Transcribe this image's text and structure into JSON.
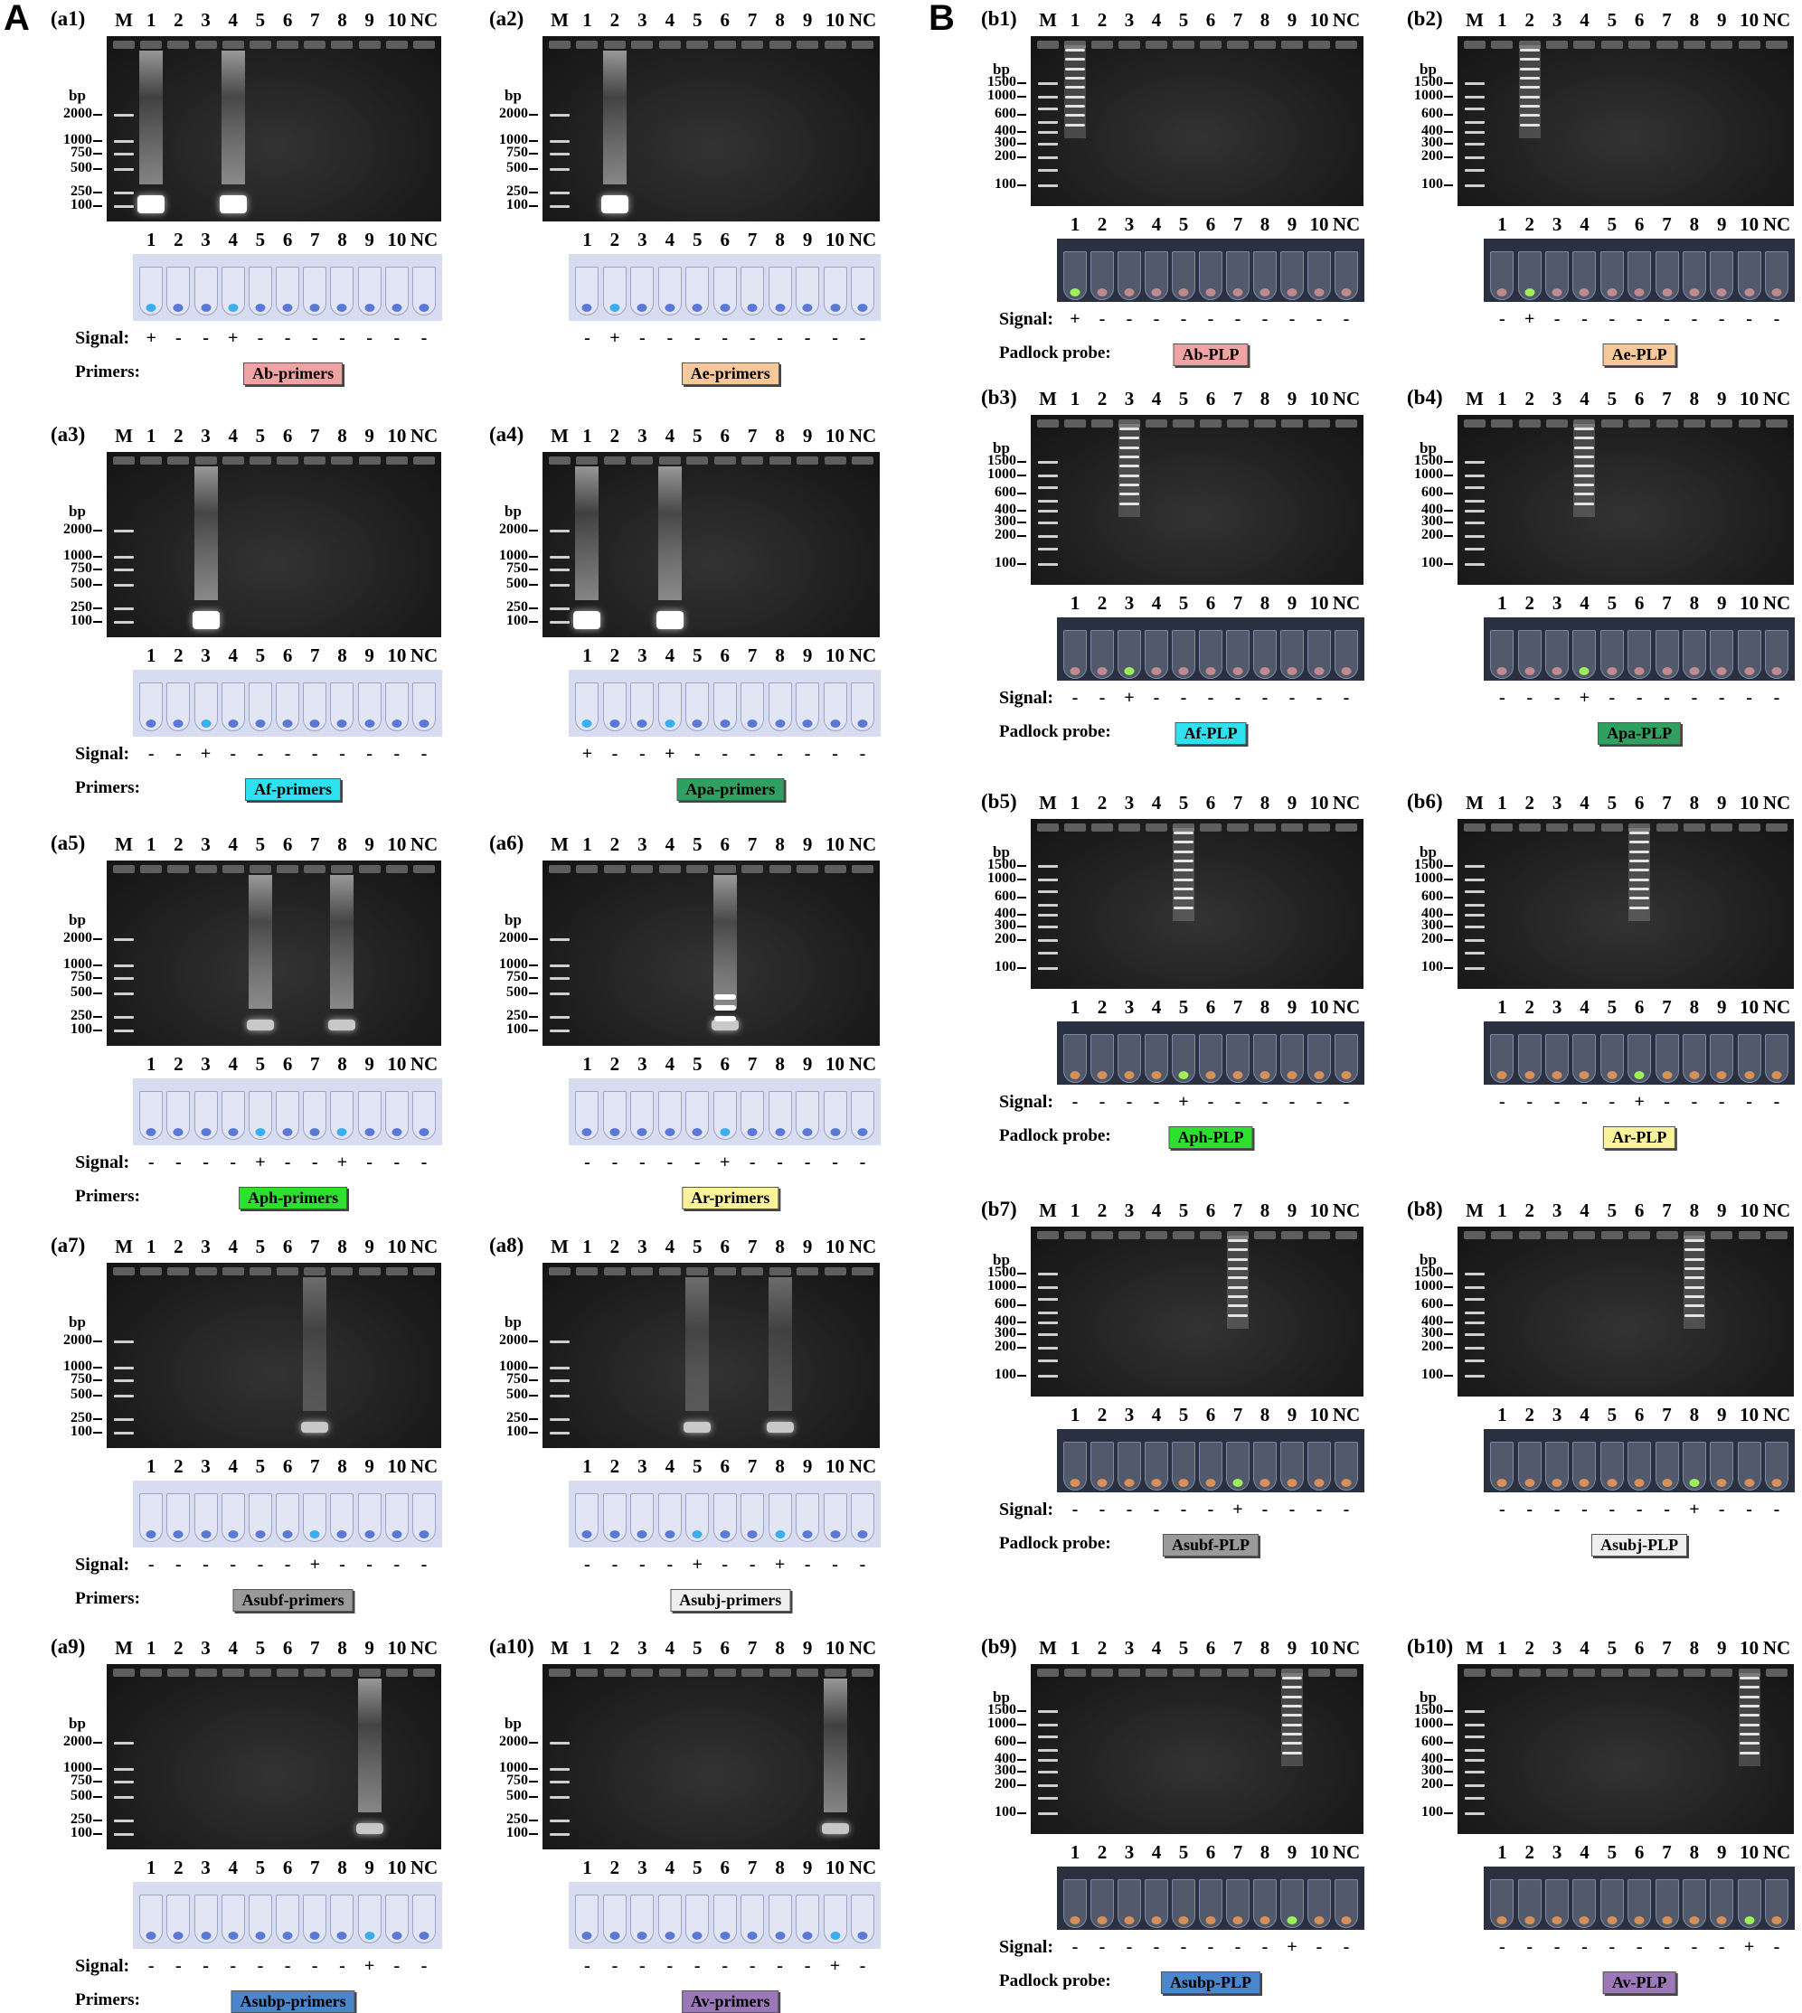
{
  "sections": [
    "A",
    "B"
  ],
  "ui": {
    "signal_label": "Signal:",
    "primers_label": "Primers:",
    "probe_label": "Padlock probe:",
    "bp_label": "bp"
  },
  "a_lanes": [
    "M",
    "1",
    "2",
    "3",
    "4",
    "5",
    "6",
    "7",
    "8",
    "9",
    "10",
    "NC"
  ],
  "tube_lanes": [
    "1",
    "2",
    "3",
    "4",
    "5",
    "6",
    "7",
    "8",
    "9",
    "10",
    "NC"
  ],
  "a_markers": [
    "2000",
    "1000",
    "750",
    "500",
    "250",
    "100"
  ],
  "b_markers": [
    "1500",
    "1000",
    "600",
    "400",
    "300",
    "200",
    "100"
  ],
  "panels_a": [
    {
      "label": "(a1)",
      "name": "Ab-primers",
      "color": "#f0a3a3",
      "signal": [
        "+",
        "-",
        "-",
        "+",
        "-",
        "-",
        "-",
        "-",
        "-",
        "-",
        "-"
      ]
    },
    {
      "label": "(a2)",
      "name": "Ae-primers",
      "color": "#f7c99a",
      "signal": [
        "-",
        "+",
        "-",
        "-",
        "-",
        "-",
        "-",
        "-",
        "-",
        "-",
        "-"
      ]
    },
    {
      "label": "(a3)",
      "name": "Af-primers",
      "color": "#2fe0ef",
      "signal": [
        "-",
        "-",
        "+",
        "-",
        "-",
        "-",
        "-",
        "-",
        "-",
        "-",
        "-"
      ]
    },
    {
      "label": "(a4)",
      "name": "Apa-primers",
      "color": "#2fa060",
      "signal": [
        "+",
        "-",
        "-",
        "+",
        "-",
        "-",
        "-",
        "-",
        "-",
        "-",
        "-"
      ]
    },
    {
      "label": "(a5)",
      "name": "Aph-primers",
      "color": "#2ee02e",
      "signal": [
        "-",
        "-",
        "-",
        "-",
        "+",
        "-",
        "-",
        "+",
        "-",
        "-",
        "-"
      ]
    },
    {
      "label": "(a6)",
      "name": "Ar-primers",
      "color": "#fbf29c",
      "signal": [
        "-",
        "-",
        "-",
        "-",
        "-",
        "+",
        "-",
        "-",
        "-",
        "-",
        "-"
      ]
    },
    {
      "label": "(a7)",
      "name": "Asubf-primers",
      "color": "#9a9a9a",
      "signal": [
        "-",
        "-",
        "-",
        "-",
        "-",
        "-",
        "+",
        "-",
        "-",
        "-",
        "-"
      ]
    },
    {
      "label": "(a8)",
      "name": "Asubj-primers",
      "color": "#efefef",
      "signal": [
        "-",
        "-",
        "-",
        "-",
        "+",
        "-",
        "-",
        "+",
        "-",
        "-",
        "-"
      ]
    },
    {
      "label": "(a9)",
      "name": "Asubp-primers",
      "color": "#4a86cc",
      "signal": [
        "-",
        "-",
        "-",
        "-",
        "-",
        "-",
        "-",
        "-",
        "+",
        "-",
        "-"
      ]
    },
    {
      "label": "(a10)",
      "name": "Av-primers",
      "color": "#9c78b8",
      "signal": [
        "-",
        "-",
        "-",
        "-",
        "-",
        "-",
        "-",
        "-",
        "-",
        "+",
        "-"
      ]
    }
  ],
  "panels_b": [
    {
      "label": "(b1)",
      "name": "Ab-PLP",
      "color": "#f0a3a3",
      "signal": [
        "+",
        "-",
        "-",
        "-",
        "-",
        "-",
        "-",
        "-",
        "-",
        "-",
        "-"
      ]
    },
    {
      "label": "(b2)",
      "name": "Ae-PLP",
      "color": "#f7c99a",
      "signal": [
        "-",
        "+",
        "-",
        "-",
        "-",
        "-",
        "-",
        "-",
        "-",
        "-",
        "-"
      ]
    },
    {
      "label": "(b3)",
      "name": "Af-PLP",
      "color": "#2fe0ef",
      "signal": [
        "-",
        "-",
        "+",
        "-",
        "-",
        "-",
        "-",
        "-",
        "-",
        "-",
        "-"
      ]
    },
    {
      "label": "(b4)",
      "name": "Apa-PLP",
      "color": "#2fa060",
      "signal": [
        "-",
        "-",
        "-",
        "+",
        "-",
        "-",
        "-",
        "-",
        "-",
        "-",
        "-"
      ]
    },
    {
      "label": "(b5)",
      "name": "Aph-PLP",
      "color": "#2ee02e",
      "signal": [
        "-",
        "-",
        "-",
        "-",
        "+",
        "-",
        "-",
        "-",
        "-",
        "-",
        "-"
      ]
    },
    {
      "label": "(b6)",
      "name": "Ar-PLP",
      "color": "#fbf29c",
      "signal": [
        "-",
        "-",
        "-",
        "-",
        "-",
        "+",
        "-",
        "-",
        "-",
        "-",
        "-"
      ]
    },
    {
      "label": "(b7)",
      "name": "Asubf-PLP",
      "color": "#9a9a9a",
      "signal": [
        "-",
        "-",
        "-",
        "-",
        "-",
        "-",
        "+",
        "-",
        "-",
        "-",
        "-"
      ]
    },
    {
      "label": "(b8)",
      "name": "Asubj-PLP",
      "color": "#efefef",
      "signal": [
        "-",
        "-",
        "-",
        "-",
        "-",
        "-",
        "-",
        "+",
        "-",
        "-",
        "-"
      ]
    },
    {
      "label": "(b9)",
      "name": "Asubp-PLP",
      "color": "#4a86cc",
      "signal": [
        "-",
        "-",
        "-",
        "-",
        "-",
        "-",
        "-",
        "-",
        "+",
        "-",
        "-"
      ]
    },
    {
      "label": "(b10)",
      "name": "Av-PLP",
      "color": "#9c78b8",
      "signal": [
        "-",
        "-",
        "-",
        "-",
        "-",
        "-",
        "-",
        "-",
        "-",
        "+",
        "-"
      ]
    }
  ],
  "colors": {
    "gel_background": "#2a2a2a",
    "band_a": "#ffffff",
    "tube_blue_neg": "#5a78d8",
    "tube_blue_pos": "#3aaef0",
    "tube_green_pos": "#9ef05a",
    "tube_orange_neg": "#d8905a"
  }
}
